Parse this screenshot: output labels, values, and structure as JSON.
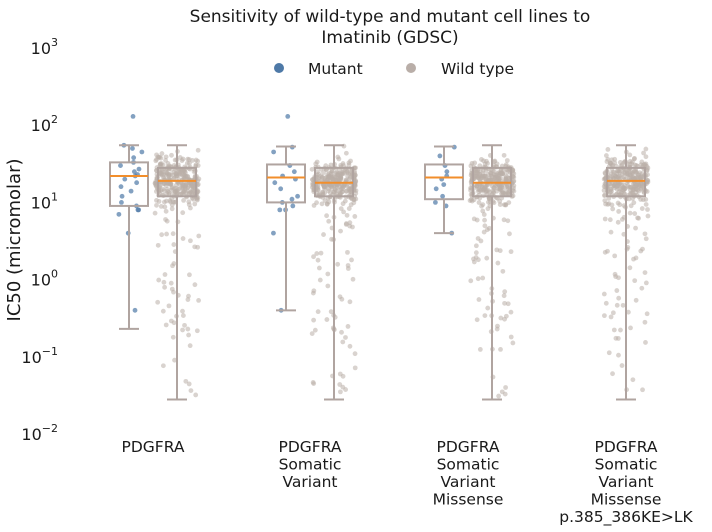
{
  "chart_data": {
    "type": "box",
    "title_lines": [
      "Sensitivity of wild-type and mutant cell lines to",
      "Imatinib (GDSC)"
    ],
    "ylabel": "IC50 (micromolar)",
    "yscale": "log",
    "ylim": [
      0.01,
      1000
    ],
    "yticks": [
      {
        "value": 0.01,
        "base": "10",
        "exp": "−2"
      },
      {
        "value": 0.1,
        "base": "10",
        "exp": "−1"
      },
      {
        "value": 1,
        "base": "10",
        "exp": "0"
      },
      {
        "value": 10,
        "base": "10",
        "exp": "1"
      },
      {
        "value": 100,
        "base": "10",
        "exp": "2"
      },
      {
        "value": 1000,
        "base": "10",
        "exp": "3"
      }
    ],
    "legend": {
      "position": "top-center",
      "entries": [
        {
          "label": "Mutant",
          "color": "#4e79a7"
        },
        {
          "label": "Wild type",
          "color": "#b9aea8"
        }
      ]
    },
    "colors": {
      "mutant": "#4e79a7",
      "wild_type": "#b9aea8",
      "median": "#f28e2b",
      "box": "#b0a4a0"
    },
    "groups": [
      {
        "label_lines": [
          "PDGFRA"
        ],
        "mutant": {
          "q1": 9,
          "median": 22,
          "q3": 33,
          "whisker_low": 0.23,
          "whisker_high": 55,
          "points": [
            130,
            55,
            50,
            45,
            38,
            33,
            30,
            27,
            25,
            23,
            22,
            20,
            18,
            16,
            14,
            12,
            10,
            9,
            8,
            8,
            7,
            4,
            0.4
          ]
        },
        "wild_type": {
          "q1": 12,
          "median": 19,
          "q3": 28,
          "whisker_low": 0.028,
          "whisker_high": 55
        }
      },
      {
        "label_lines": [
          "PDGFRA",
          "Somatic",
          "Variant"
        ],
        "mutant": {
          "q1": 10,
          "median": 21,
          "q3": 31,
          "whisker_low": 0.4,
          "whisker_high": 53,
          "points": [
            130,
            52,
            45,
            30,
            25,
            22,
            20,
            18,
            15,
            12,
            11,
            10,
            9,
            8,
            8,
            4,
            0.4
          ]
        },
        "wild_type": {
          "q1": 12,
          "median": 18,
          "q3": 28,
          "whisker_low": 0.028,
          "whisker_high": 55
        }
      },
      {
        "label_lines": [
          "PDGFRA",
          "Somatic",
          "Variant",
          "Missense"
        ],
        "mutant": {
          "q1": 11,
          "median": 21,
          "q3": 31,
          "whisker_low": 4,
          "whisker_high": 53,
          "points": [
            52,
            40,
            30,
            25,
            22,
            20,
            17,
            15,
            12,
            10,
            9,
            4
          ]
        },
        "wild_type": {
          "q1": 12,
          "median": 18,
          "q3": 28,
          "whisker_low": 0.028,
          "whisker_high": 55
        }
      },
      {
        "label_lines": [
          "PDGFRA",
          "Somatic",
          "Variant",
          "Missense",
          "p.385_386KE>LK"
        ],
        "mutant": null,
        "wild_type": {
          "q1": 12,
          "median": 19,
          "q3": 28,
          "whisker_low": 0.028,
          "whisker_high": 55
        }
      }
    ]
  }
}
